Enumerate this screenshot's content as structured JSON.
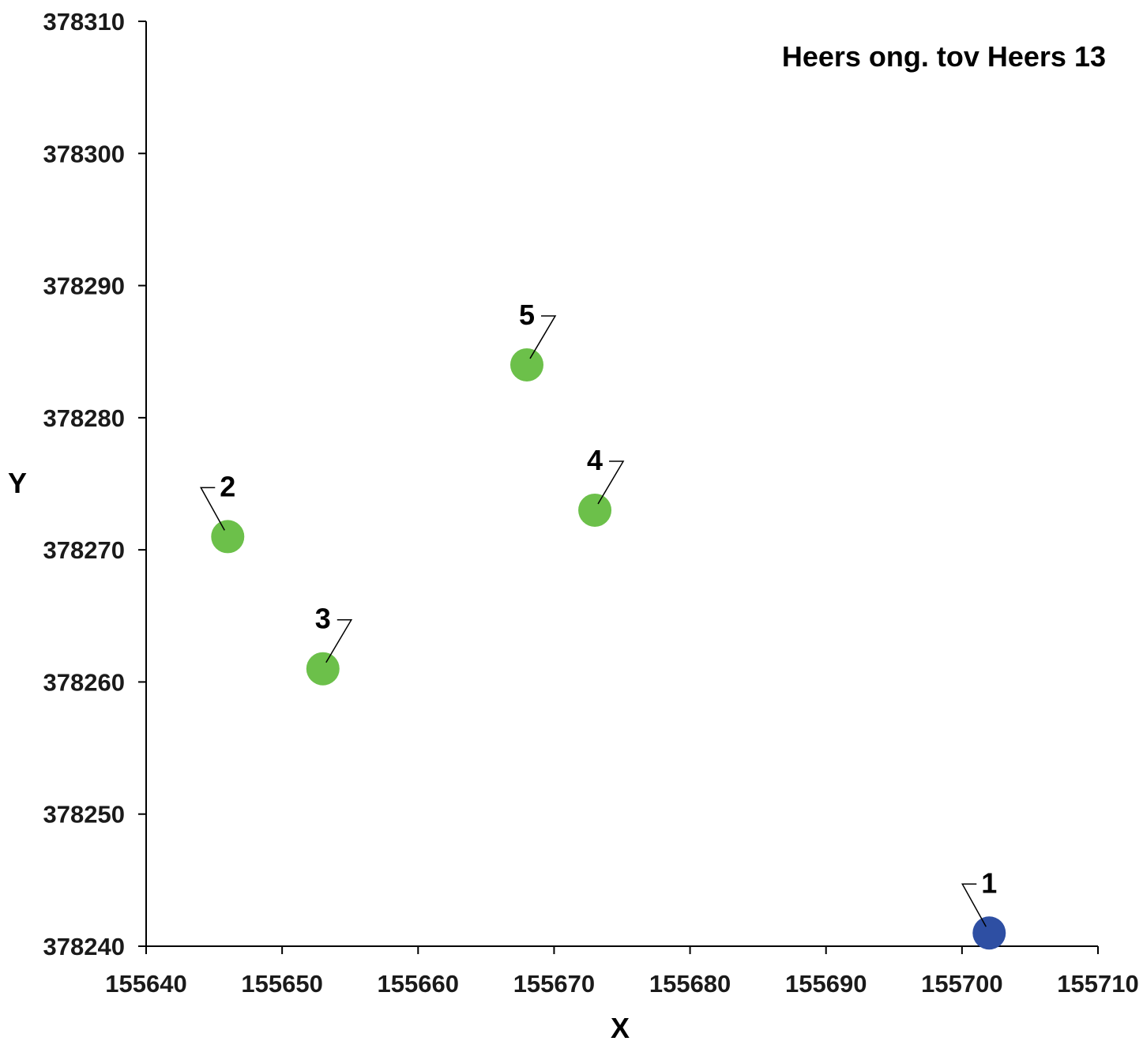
{
  "chart_data": {
    "type": "scatter",
    "title": "Heers ong. tov Heers 13",
    "xlabel": "X",
    "ylabel": "Y",
    "xlim": [
      155640,
      155710
    ],
    "ylim": [
      378240,
      378310
    ],
    "x_ticks": [
      "155640",
      "155650",
      "155660",
      "155670",
      "155680",
      "155690",
      "155700",
      "155710"
    ],
    "y_ticks": [
      "378240",
      "378250",
      "378260",
      "378270",
      "378280",
      "378290",
      "378300",
      "378310"
    ],
    "grid": false,
    "legend": "none",
    "points": [
      {
        "label": "1",
        "x": 155702,
        "y": 378241,
        "color": "#2e4fa3",
        "label_side": "left"
      },
      {
        "label": "2",
        "x": 155646,
        "y": 378271,
        "color": "#6cc04a",
        "label_side": "left"
      },
      {
        "label": "3",
        "x": 155653,
        "y": 378261,
        "color": "#6cc04a",
        "label_side": "right"
      },
      {
        "label": "4",
        "x": 155673,
        "y": 378273,
        "color": "#6cc04a",
        "label_side": "right"
      },
      {
        "label": "5",
        "x": 155668,
        "y": 378284,
        "color": "#6cc04a",
        "label_side": "right"
      }
    ]
  }
}
